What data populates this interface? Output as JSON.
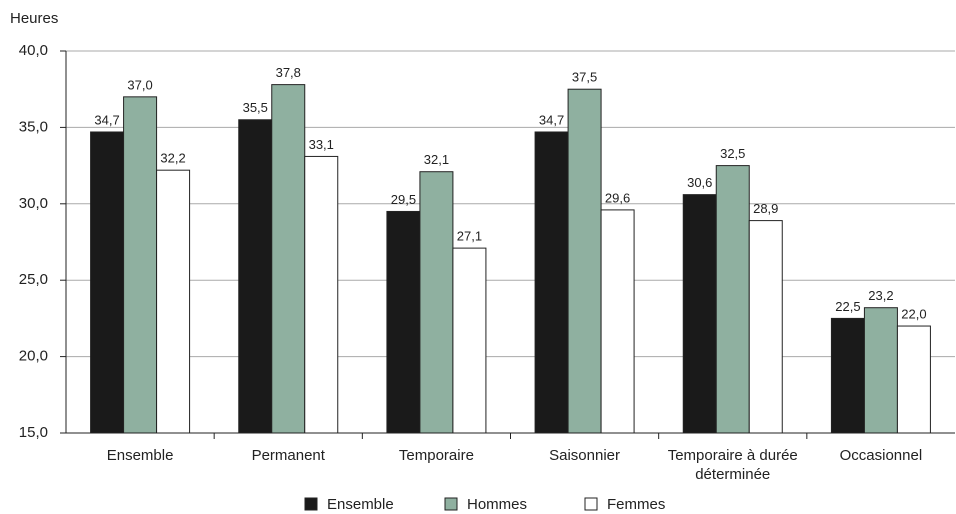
{
  "chart_data": {
    "type": "bar",
    "y_label": "Heures",
    "categories": [
      "Ensemble",
      "Permanent",
      "Temporaire",
      "Saisonnier",
      "Temporaire à durée déterminée",
      "Occasionnel"
    ],
    "series": [
      {
        "name": "Ensemble",
        "color": "#1a1a1a",
        "values": [
          34.7,
          35.5,
          29.5,
          34.7,
          30.6,
          22.5
        ],
        "value_labels": [
          "34,7",
          "35,5",
          "29,5",
          "34,7",
          "30,6",
          "22,5"
        ]
      },
      {
        "name": "Hommes",
        "color": "#8fb0a0",
        "values": [
          37.0,
          37.8,
          32.1,
          37.5,
          32.5,
          23.2
        ],
        "value_labels": [
          "37,0",
          "37,8",
          "32,1",
          "37,5",
          "32,5",
          "23,2"
        ]
      },
      {
        "name": "Femmes",
        "color": "#ffffff",
        "values": [
          32.2,
          33.1,
          27.1,
          29.6,
          28.9,
          22.0
        ],
        "value_labels": [
          "32,2",
          "33,1",
          "27,1",
          "29,6",
          "28,9",
          "22,0"
        ]
      }
    ],
    "ylim": [
      15,
      40
    ],
    "yticks": [
      {
        "value": 15,
        "label": "15,0"
      },
      {
        "value": 20,
        "label": "20,0"
      },
      {
        "value": 25,
        "label": "25,0"
      },
      {
        "value": 30,
        "label": "30,0"
      },
      {
        "value": 35,
        "label": "35,0"
      },
      {
        "value": 40,
        "label": "40,0"
      }
    ],
    "grid": true,
    "legend": "bottom"
  }
}
